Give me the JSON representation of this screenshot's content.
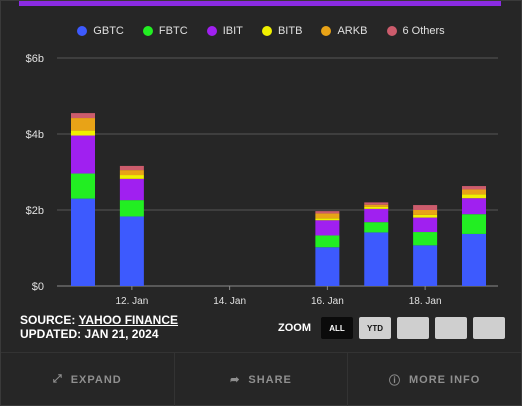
{
  "legend": [
    {
      "name": "GBTC",
      "color": "#3d5afe"
    },
    {
      "name": "FBTC",
      "color": "#22ee22"
    },
    {
      "name": "IBIT",
      "color": "#a020f0"
    },
    {
      "name": "BITB",
      "color": "#f0f000"
    },
    {
      "name": "ARKB",
      "color": "#e8a317"
    },
    {
      "name": "6 Others",
      "color": "#cc5c6c"
    }
  ],
  "meta": {
    "source_prefix": "SOURCE: ",
    "source_link": "YAHOO FINANCE",
    "updated": "UPDATED: JAN 21, 2024"
  },
  "zoom": {
    "label": "ZOOM",
    "buttons": [
      {
        "label": "ALL",
        "active": true
      },
      {
        "label": "YTD",
        "active": false
      },
      {
        "label": "",
        "active": false
      },
      {
        "label": "",
        "active": false
      },
      {
        "label": "",
        "active": false
      }
    ]
  },
  "bottom": [
    {
      "label": "EXPAND",
      "icon": "expand-icon"
    },
    {
      "label": "SHARE",
      "icon": "share-icon"
    },
    {
      "label": "MORE INFO",
      "icon": "info-icon"
    }
  ],
  "chart_data": {
    "type": "bar",
    "stacked": true,
    "y_tick_labels": [
      "$0",
      "$2b",
      "$4b",
      "$6b"
    ],
    "y_ticks": [
      0,
      2,
      4,
      6
    ],
    "ylim": [
      0,
      6
    ],
    "x_tick_labels": [
      "12. Jan",
      "14. Jan",
      "16. Jan",
      "18. Jan"
    ],
    "categories": [
      "2024-01-11",
      "2024-01-12",
      "2024-01-16",
      "2024-01-17",
      "2024-01-18",
      "2024-01-19"
    ],
    "series": [
      {
        "name": "GBTC",
        "color": "#3d5afe",
        "values": [
          2.3,
          1.83,
          1.02,
          1.41,
          1.07,
          1.37
        ]
      },
      {
        "name": "FBTC",
        "color": "#22ee22",
        "values": [
          0.66,
          0.43,
          0.31,
          0.27,
          0.35,
          0.52
        ]
      },
      {
        "name": "IBIT",
        "color": "#a020f0",
        "values": [
          1.0,
          0.56,
          0.4,
          0.35,
          0.38,
          0.42
        ]
      },
      {
        "name": "BITB",
        "color": "#f0f000",
        "values": [
          0.13,
          0.1,
          0.05,
          0.05,
          0.07,
          0.1
        ]
      },
      {
        "name": "ARKB",
        "color": "#e8a317",
        "values": [
          0.33,
          0.13,
          0.13,
          0.06,
          0.13,
          0.13
        ]
      },
      {
        "name": "6 Others",
        "color": "#cc5c6c",
        "values": [
          0.13,
          0.11,
          0.06,
          0.06,
          0.13,
          0.09
        ]
      }
    ]
  }
}
